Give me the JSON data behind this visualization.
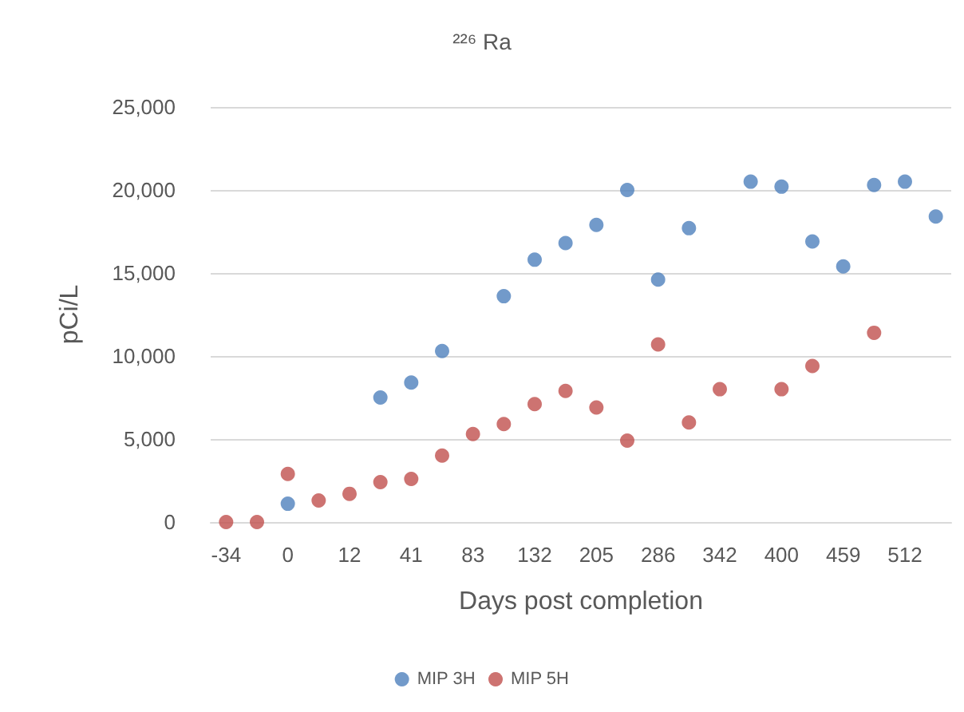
{
  "chart_data": {
    "type": "scatter",
    "title": "²²⁶ Ra",
    "xlabel": "Days post completion",
    "ylabel": "pCi/L",
    "categories": [
      "-34",
      null,
      "0",
      null,
      "12",
      null,
      "41",
      null,
      "83",
      null,
      "132",
      null,
      "205",
      null,
      "286",
      null,
      "342",
      null,
      "400",
      null,
      "459",
      null,
      "512",
      null
    ],
    "series": [
      {
        "name": "MIP 3H",
        "color": "#4f81bd",
        "values": [
          null,
          null,
          1100,
          null,
          null,
          7500,
          8400,
          10300,
          null,
          13600,
          15800,
          16800,
          17900,
          20000,
          14600,
          17700,
          null,
          20500,
          20200,
          16900,
          15400,
          20300,
          20500,
          18400
        ]
      },
      {
        "name": "MIP 5H",
        "color": "#c0504d",
        "values": [
          0,
          0,
          2900,
          1300,
          1700,
          2400,
          2600,
          4000,
          5300,
          5900,
          7100,
          7900,
          6900,
          4900,
          10700,
          6000,
          8000,
          null,
          8000,
          9400,
          null,
          11400,
          null,
          null
        ]
      }
    ],
    "ylim": [
      0,
      25000
    ],
    "yticks": [
      {
        "value": 0,
        "label": "0"
      },
      {
        "value": 5000,
        "label": "5,000"
      },
      {
        "value": 10000,
        "label": "10,000"
      },
      {
        "value": 15000,
        "label": "15,000"
      },
      {
        "value": 20000,
        "label": "20,000"
      },
      {
        "value": 25000,
        "label": "25,000"
      }
    ],
    "grid": "y",
    "legend": "bottom",
    "marker": "circle"
  }
}
